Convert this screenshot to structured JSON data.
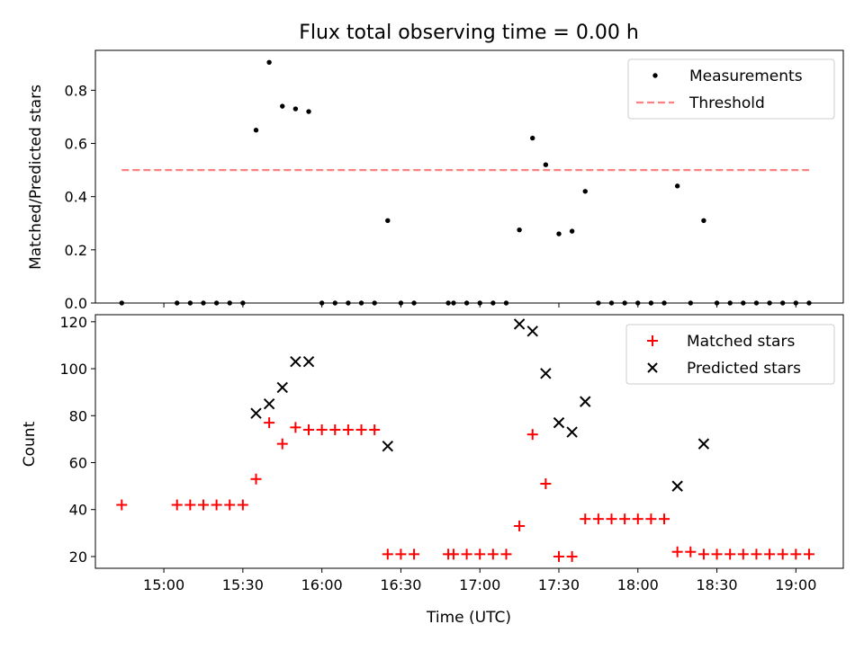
{
  "figure": {
    "title": "Flux total observing time = 0.00 h",
    "xlabel": "Time (UTC)"
  },
  "colors": {
    "measurement": "#000000",
    "threshold": "#ff8080",
    "matched": "#ff0000",
    "predicted": "#000000"
  },
  "chart_data": [
    {
      "type": "scatter",
      "ylabel": "Matched/Predicted stars",
      "xlim": [
        "14:34",
        "19:18"
      ],
      "ylim": [
        0,
        0.95
      ],
      "yticks": [
        0.0,
        0.2,
        0.4,
        0.6,
        0.8
      ],
      "yticklabels": [
        "0.0",
        "0.2",
        "0.4",
        "0.6",
        "0.8"
      ],
      "legend": {
        "position": "top-right",
        "labels": [
          "Measurements",
          "Threshold"
        ]
      },
      "series": [
        {
          "name": "Measurements",
          "marker": "dot",
          "x": [
            "14:44",
            "15:05",
            "15:10",
            "15:15",
            "15:20",
            "15:25",
            "15:30",
            "15:35",
            "15:40",
            "15:45",
            "15:50",
            "15:55",
            "16:00",
            "16:05",
            "16:10",
            "16:15",
            "16:20",
            "16:25",
            "16:30",
            "16:35",
            "16:48",
            "16:50",
            "16:55",
            "17:00",
            "17:05",
            "17:10",
            "17:15",
            "17:20",
            "17:25",
            "17:30",
            "17:35",
            "17:40",
            "17:45",
            "17:50",
            "17:55",
            "18:00",
            "18:05",
            "18:10",
            "18:15",
            "18:20",
            "18:25",
            "18:30",
            "18:35",
            "18:40",
            "18:45",
            "18:50",
            "18:55",
            "19:00",
            "19:05"
          ],
          "y": [
            0,
            0,
            0,
            0,
            0,
            0,
            0,
            0.65,
            0.905,
            0.74,
            0.73,
            0.72,
            0,
            0,
            0,
            0,
            0,
            0.31,
            0,
            0,
            0,
            0,
            0,
            0,
            0,
            0,
            0.275,
            0.62,
            0.52,
            0.26,
            0.27,
            0.42,
            0,
            0,
            0,
            0,
            0,
            0,
            0.44,
            0,
            0.31,
            0,
            0,
            0,
            0,
            0,
            0,
            0,
            0
          ]
        },
        {
          "name": "Threshold",
          "line": "dashed",
          "x": [
            "14:44",
            "19:05"
          ],
          "y": [
            0.5,
            0.5
          ]
        }
      ]
    },
    {
      "type": "scatter",
      "ylabel": "Count",
      "xlim": [
        "14:34",
        "19:18"
      ],
      "ylim": [
        15,
        123
      ],
      "yticks": [
        20,
        40,
        60,
        80,
        100,
        120
      ],
      "yticklabels": [
        "20",
        "40",
        "60",
        "80",
        "100",
        "120"
      ],
      "xticks": [
        "15:00",
        "15:30",
        "16:00",
        "16:30",
        "17:00",
        "17:30",
        "18:00",
        "18:30",
        "19:00"
      ],
      "xticklabels": [
        "15:00",
        "15:30",
        "16:00",
        "16:30",
        "17:00",
        "17:30",
        "18:00",
        "18:30",
        "19:00"
      ],
      "legend": {
        "position": "top-right",
        "labels": [
          "Matched stars",
          "Predicted stars"
        ]
      },
      "series": [
        {
          "name": "Matched stars",
          "marker": "plus",
          "x": [
            "14:44",
            "15:05",
            "15:10",
            "15:15",
            "15:20",
            "15:25",
            "15:30",
            "15:35",
            "15:40",
            "15:45",
            "15:50",
            "15:55",
            "16:00",
            "16:05",
            "16:10",
            "16:15",
            "16:20",
            "16:25",
            "16:30",
            "16:35",
            "16:48",
            "16:50",
            "16:55",
            "17:00",
            "17:05",
            "17:10",
            "17:15",
            "17:20",
            "17:25",
            "17:30",
            "17:35",
            "17:40",
            "17:45",
            "17:50",
            "17:55",
            "18:00",
            "18:05",
            "18:10",
            "18:15",
            "18:20",
            "18:25",
            "18:30",
            "18:35",
            "18:40",
            "18:45",
            "18:50",
            "18:55",
            "19:00",
            "19:05"
          ],
          "y": [
            42,
            42,
            42,
            42,
            42,
            42,
            42,
            53,
            77,
            68,
            75,
            74,
            74,
            74,
            74,
            74,
            74,
            21,
            21,
            21,
            21,
            21,
            21,
            21,
            21,
            21,
            33,
            72,
            51,
            20,
            20,
            36,
            36,
            36,
            36,
            36,
            36,
            36,
            22,
            22,
            21,
            21,
            21,
            21,
            21,
            21,
            21,
            21,
            21
          ]
        },
        {
          "name": "Predicted stars",
          "marker": "x",
          "x": [
            "15:35",
            "15:40",
            "15:45",
            "15:50",
            "15:55",
            "16:25",
            "17:15",
            "17:20",
            "17:25",
            "17:30",
            "17:35",
            "17:40",
            "18:15",
            "18:25"
          ],
          "y": [
            81,
            85,
            92,
            103,
            103,
            67,
            119,
            116,
            98,
            77,
            73,
            86,
            50,
            68
          ]
        }
      ]
    }
  ]
}
